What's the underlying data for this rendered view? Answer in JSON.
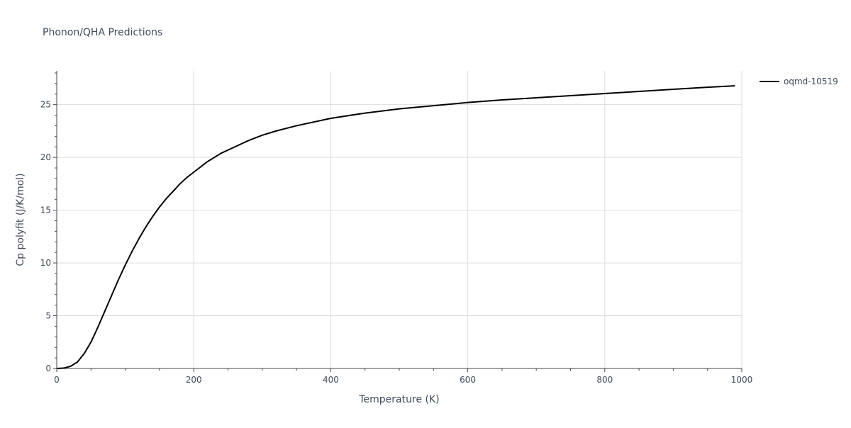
{
  "chart_data": {
    "type": "line",
    "title": "Phonon/QHA Predictions",
    "xlabel": "Temperature (K)",
    "ylabel": "Cp polyfit (J/K/mol)",
    "xlim": [
      0,
      1000
    ],
    "ylim": [
      0,
      28.2
    ],
    "x_ticks": [
      0,
      200,
      400,
      600,
      800,
      1000
    ],
    "y_ticks": [
      0,
      5,
      10,
      15,
      20,
      25
    ],
    "x_tick_labels": [
      "0",
      "200",
      "400",
      "600",
      "800",
      "1000"
    ],
    "y_tick_labels": [
      "0",
      "5",
      "10",
      "15",
      "20",
      "25"
    ],
    "grid": true,
    "legend_position": "top-right",
    "series": [
      {
        "name": "oqmd-10519",
        "color": "#000000",
        "x": [
          0,
          10,
          20,
          30,
          40,
          50,
          60,
          70,
          80,
          90,
          100,
          110,
          120,
          130,
          140,
          150,
          160,
          170,
          180,
          190,
          200,
          220,
          240,
          260,
          280,
          300,
          320,
          350,
          400,
          450,
          500,
          550,
          600,
          650,
          700,
          750,
          800,
          850,
          900,
          950,
          990
        ],
        "y": [
          0,
          0.03,
          0.2,
          0.6,
          1.4,
          2.5,
          3.9,
          5.4,
          6.9,
          8.4,
          9.8,
          11.1,
          12.3,
          13.4,
          14.4,
          15.3,
          16.1,
          16.8,
          17.5,
          18.1,
          18.6,
          19.6,
          20.4,
          21.0,
          21.6,
          22.1,
          22.5,
          23.0,
          23.7,
          24.2,
          24.6,
          24.9,
          25.2,
          25.45,
          25.65,
          25.85,
          26.05,
          26.25,
          26.45,
          26.65,
          26.78
        ]
      }
    ]
  }
}
